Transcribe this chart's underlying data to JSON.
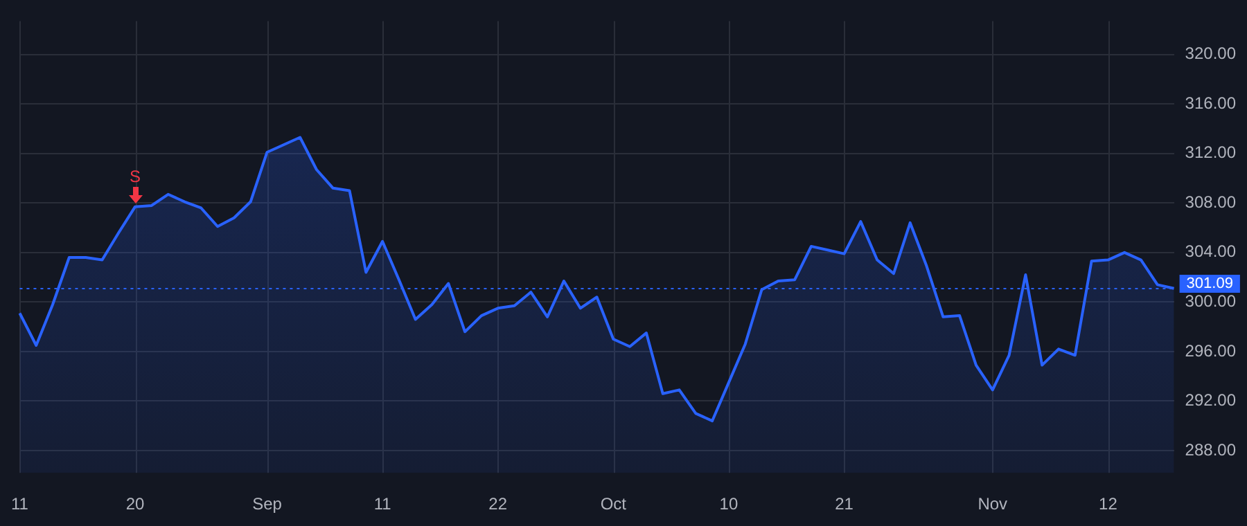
{
  "chart_data": {
    "type": "area",
    "categories": [
      "11",
      null,
      null,
      null,
      null,
      null,
      null,
      "20",
      null,
      null,
      null,
      null,
      null,
      null,
      null,
      "Sep",
      null,
      null,
      null,
      null,
      null,
      null,
      "11",
      null,
      null,
      null,
      null,
      null,
      null,
      "22",
      null,
      null,
      null,
      null,
      null,
      null,
      "Oct",
      null,
      null,
      null,
      null,
      null,
      null,
      "10",
      null,
      null,
      null,
      null,
      null,
      null,
      "21",
      null,
      null,
      null,
      null,
      null,
      null,
      null,
      null,
      "Nov",
      null,
      null,
      null,
      null,
      null,
      null,
      "12",
      null,
      null,
      null,
      null
    ],
    "series": [
      {
        "color": "#2962ff",
        "values": [
          299.1,
          296.5,
          299.8,
          303.6,
          303.6,
          303.4,
          305.6,
          307.7,
          307.8,
          308.7,
          308.1,
          307.6,
          306.1,
          306.8,
          308.1,
          312.1,
          312.7,
          313.3,
          310.7,
          309.2,
          309.0,
          302.4,
          304.9,
          301.8,
          298.6,
          299.8,
          301.5,
          297.6,
          298.9,
          299.5,
          299.7,
          300.8,
          298.8,
          301.7,
          299.5,
          300.4,
          297.0,
          296.4,
          297.5,
          292.6,
          292.9,
          291.0,
          290.4,
          293.5,
          296.6,
          301.0,
          301.7,
          301.8,
          304.5,
          304.2,
          303.9,
          306.5,
          303.4,
          302.3,
          306.4,
          302.9,
          298.8,
          298.9,
          294.9,
          292.9,
          295.7,
          302.2,
          294.9,
          296.2,
          295.7,
          303.3,
          303.4,
          304.0,
          303.4,
          301.4,
          301.1
        ]
      }
    ],
    "ylim": [
      286.2,
      322.7
    ],
    "yticks": [
      {
        "value": 288,
        "label": "288.00"
      },
      {
        "value": 292,
        "label": "292.00"
      },
      {
        "value": 296,
        "label": "296.00"
      },
      {
        "value": 300,
        "label": "300.00"
      },
      {
        "value": 304,
        "label": "304.00"
      },
      {
        "value": 308,
        "label": "308.00"
      },
      {
        "value": 312,
        "label": "312.00"
      },
      {
        "value": 316,
        "label": "316.00"
      },
      {
        "value": 320,
        "label": "320.00"
      }
    ],
    "grid": true,
    "legend": false,
    "marker": "none",
    "line_style": "solid",
    "ref_lines": [
      {
        "axis": "y",
        "value": 301.09,
        "label": "301.09",
        "color": "#2962ff",
        "line_style": "dotted"
      }
    ],
    "annotations": [
      {
        "text": "S",
        "x": "20",
        "y": 307.7
      }
    ]
  }
}
